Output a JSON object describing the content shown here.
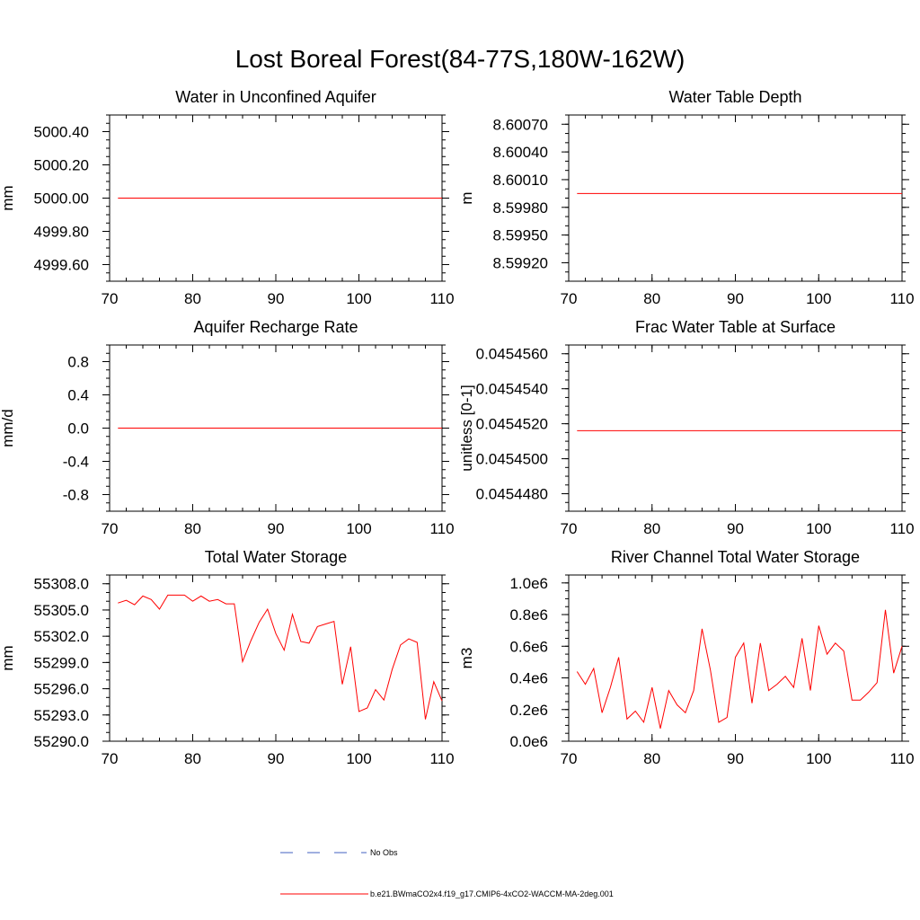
{
  "title": "Lost Boreal Forest(84-77S,180W-162W)",
  "colors": {
    "series": "#ff0000",
    "obs": "#4060c0",
    "axis": "#000000"
  },
  "legend": {
    "obs_label": "No Obs",
    "model_label": "b.e21.BWmaCO2x4.f19_g17.CMIP6-4xCO2-WACCM-MA-2deg.001"
  },
  "chart_data": [
    {
      "type": "line",
      "title": "Water in Unconfined Aquifer",
      "ylabel": "mm",
      "xlim": [
        70,
        110
      ],
      "ylim": [
        4999.5,
        5000.5
      ],
      "xticks": [
        70,
        80,
        90,
        100,
        110
      ],
      "xtick_labels": [
        "70",
        "80",
        "90",
        "100",
        "110"
      ],
      "yticks": [
        4999.6,
        4999.8,
        5000.0,
        5000.2,
        5000.4
      ],
      "ytick_labels": [
        "4999.60",
        "4999.80",
        "5000.00",
        "5000.20",
        "5000.40"
      ],
      "yminor": 0.05,
      "series": [
        {
          "name": "b.e21.BWmaCO2x4.f19_g17.CMIP6-4xCO2-WACCM-MA-2deg.001",
          "x": [
            71,
            110
          ],
          "values": [
            5000.0,
            5000.0
          ]
        }
      ]
    },
    {
      "type": "line",
      "title": "Water Table Depth",
      "ylabel": "m",
      "xlim": [
        70,
        110
      ],
      "ylim": [
        8.599,
        8.6008
      ],
      "xticks": [
        70,
        80,
        90,
        100,
        110
      ],
      "xtick_labels": [
        "70",
        "80",
        "90",
        "100",
        "110"
      ],
      "yticks": [
        8.5992,
        8.5995,
        8.5998,
        8.6001,
        8.6004,
        8.6007
      ],
      "ytick_labels": [
        "8.59920",
        "8.59950",
        "8.59980",
        "8.60010",
        "8.60040",
        "8.60070"
      ],
      "yminor": 0.0001,
      "series": [
        {
          "name": "b.e21.BWmaCO2x4.f19_g17.CMIP6-4xCO2-WACCM-MA-2deg.001",
          "x": [
            71,
            110
          ],
          "values": [
            8.59995,
            8.59995
          ]
        }
      ]
    },
    {
      "type": "line",
      "title": "Aquifer Recharge Rate",
      "ylabel": "mm/d",
      "xlim": [
        70,
        110
      ],
      "ylim": [
        -1.0,
        1.0
      ],
      "xticks": [
        70,
        80,
        90,
        100,
        110
      ],
      "xtick_labels": [
        "70",
        "80",
        "90",
        "100",
        "110"
      ],
      "yticks": [
        -0.8,
        -0.4,
        0.0,
        0.4,
        0.8
      ],
      "ytick_labels": [
        "-0.8",
        "-0.4",
        "0.0",
        "0.4",
        "0.8"
      ],
      "yminor": 0.1,
      "series": [
        {
          "name": "b.e21.BWmaCO2x4.f19_g17.CMIP6-4xCO2-WACCM-MA-2deg.001",
          "x": [
            71,
            110
          ],
          "values": [
            0.0,
            0.0
          ]
        }
      ]
    },
    {
      "type": "line",
      "title": "Frac Water Table at Surface",
      "ylabel": "unitless [0-1]",
      "xlim": [
        70,
        110
      ],
      "ylim": [
        0.045447,
        0.0454565
      ],
      "xticks": [
        70,
        80,
        90,
        100,
        110
      ],
      "xtick_labels": [
        "70",
        "80",
        "90",
        "100",
        "110"
      ],
      "yticks": [
        0.045448,
        0.04545,
        0.045452,
        0.045454,
        0.045456
      ],
      "ytick_labels": [
        "0.0454480",
        "0.0454500",
        "0.0454520",
        "0.0454540",
        "0.0454560"
      ],
      "yminor": 5e-07,
      "series": [
        {
          "name": "b.e21.BWmaCO2x4.f19_g17.CMIP6-4xCO2-WACCM-MA-2deg.001",
          "x": [
            71,
            110
          ],
          "values": [
            0.0454516,
            0.0454516
          ]
        }
      ]
    },
    {
      "type": "line",
      "title": "Total Water Storage",
      "ylabel": "mm",
      "xlim": [
        70,
        110
      ],
      "ylim": [
        55290.0,
        55309.0
      ],
      "xticks": [
        70,
        80,
        90,
        100,
        110
      ],
      "xtick_labels": [
        "70",
        "80",
        "90",
        "100",
        "110"
      ],
      "yticks": [
        55290.0,
        55293.0,
        55296.0,
        55299.0,
        55302.0,
        55305.0,
        55308.0
      ],
      "ytick_labels": [
        "55290.0",
        "55293.0",
        "55296.0",
        "55299.0",
        "55302.0",
        "55305.0",
        "55308.0"
      ],
      "yminor": 1.0,
      "series": [
        {
          "name": "b.e21.BWmaCO2x4.f19_g17.CMIP6-4xCO2-WACCM-MA-2deg.001",
          "x": [
            71,
            72,
            73,
            74,
            75,
            76,
            77,
            78,
            79,
            80,
            81,
            82,
            83,
            84,
            85,
            86,
            87,
            88,
            89,
            90,
            91,
            92,
            93,
            94,
            95,
            96,
            97,
            98,
            99,
            100,
            101,
            102,
            103,
            104,
            105,
            106,
            107,
            108,
            109,
            110
          ],
          "values": [
            55305.8,
            55306.1,
            55305.6,
            55306.6,
            55306.2,
            55305.1,
            55306.7,
            55306.7,
            55306.7,
            55306.0,
            55306.6,
            55306.0,
            55306.2,
            55305.7,
            55305.7,
            55299.1,
            55301.5,
            55303.6,
            55305.1,
            55302.3,
            55300.4,
            55304.5,
            55301.4,
            55301.2,
            55303.1,
            55303.4,
            55303.7,
            55296.5,
            55300.8,
            55293.4,
            55293.8,
            55295.9,
            55294.7,
            55298.2,
            55301.0,
            55301.7,
            55301.3,
            55292.5,
            55296.8,
            55294.6
          ]
        }
      ]
    },
    {
      "type": "line",
      "title": "River Channel Total Water Storage",
      "ylabel": "m3",
      "xlim": [
        70,
        110
      ],
      "ylim": [
        0.0,
        1050000
      ],
      "xticks": [
        70,
        80,
        90,
        100,
        110
      ],
      "xtick_labels": [
        "70",
        "80",
        "90",
        "100",
        "110"
      ],
      "yticks": [
        0,
        200000,
        400000,
        600000,
        800000,
        1000000
      ],
      "ytick_labels": [
        "0.0e6",
        "0.2e6",
        "0.4e6",
        "0.6e6",
        "0.8e6",
        "1.0e6"
      ],
      "yminor": 50000,
      "series": [
        {
          "name": "b.e21.BWmaCO2x4.f19_g17.CMIP6-4xCO2-WACCM-MA-2deg.001",
          "x": [
            71,
            72,
            73,
            74,
            75,
            76,
            77,
            78,
            79,
            80,
            81,
            82,
            83,
            84,
            85,
            86,
            87,
            88,
            89,
            90,
            91,
            92,
            93,
            94,
            95,
            96,
            97,
            98,
            99,
            100,
            101,
            102,
            103,
            104,
            105,
            106,
            107,
            108,
            109,
            110
          ],
          "values": [
            440000,
            360000,
            460000,
            180000,
            340000,
            530000,
            140000,
            190000,
            120000,
            340000,
            80000,
            320000,
            230000,
            180000,
            320000,
            710000,
            450000,
            120000,
            150000,
            530000,
            620000,
            240000,
            620000,
            320000,
            360000,
            410000,
            340000,
            650000,
            320000,
            730000,
            550000,
            620000,
            570000,
            260000,
            260000,
            310000,
            370000,
            830000,
            430000,
            600000
          ]
        }
      ]
    }
  ]
}
